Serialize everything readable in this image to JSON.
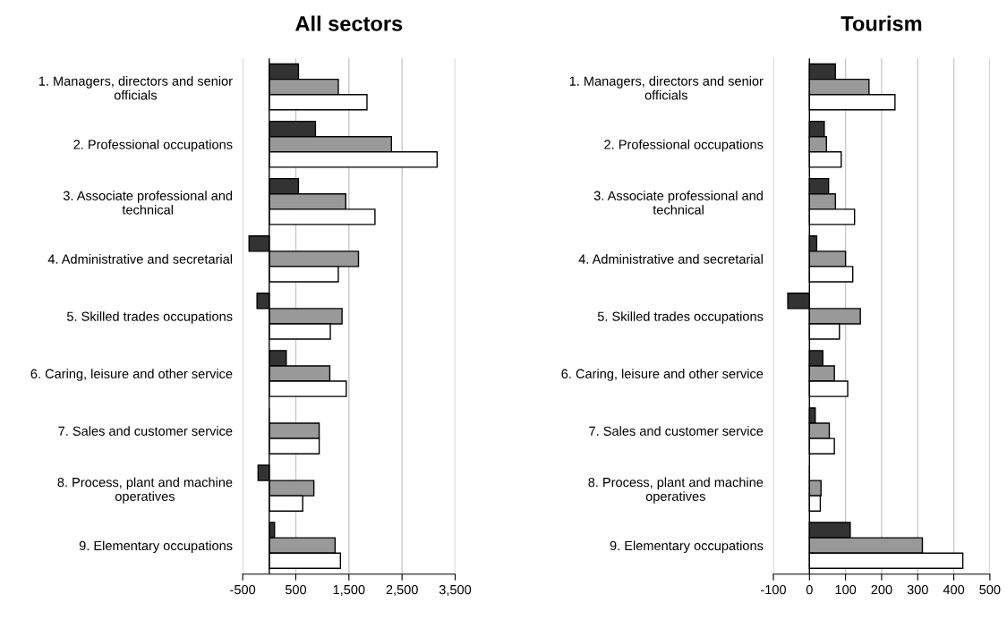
{
  "chart_data": [
    {
      "type": "bar",
      "orientation": "horizontal",
      "title": "All sectors",
      "categories": [
        "1. Managers, directors and senior\nofficials",
        "2. Professional occupations",
        "3. Associate professional and\ntechnical",
        "4. Administrative and secretarial",
        "5. Skilled trades occupations",
        "6. Caring, leisure and other service",
        "7. Sales and customer service",
        "8. Process, plant and machine\noperatives",
        "9. Elementary occupations"
      ],
      "series": [
        {
          "color": "#333333",
          "values": [
            550,
            870,
            550,
            -380,
            -230,
            320,
            0,
            -210,
            100
          ]
        },
        {
          "color": "#999999",
          "values": [
            1300,
            2300,
            1440,
            1680,
            1370,
            1140,
            940,
            840,
            1240
          ]
        },
        {
          "color": "#ffffff",
          "values": [
            1840,
            3160,
            1990,
            1300,
            1150,
            1450,
            940,
            630,
            1340
          ]
        }
      ],
      "xlim": [
        -500,
        3500
      ],
      "xticks": [
        {
          "value": -500,
          "label": "-500"
        },
        {
          "value": 500,
          "label": "500"
        },
        {
          "value": 1500,
          "label": "1,500"
        },
        {
          "value": 2500,
          "label": "2,500"
        },
        {
          "value": 3500,
          "label": "3,500"
        }
      ],
      "grid": "x"
    },
    {
      "type": "bar",
      "orientation": "horizontal",
      "title": "Tourism",
      "categories": [
        "1. Managers, directors and senior\nofficials",
        "2. Professional occupations",
        "3. Associate professional and\ntechnical",
        "4. Administrative and secretarial",
        "5. Skilled trades occupations",
        "6. Caring, leisure and other service",
        "7. Sales and customer service",
        "8. Process, plant and machine\noperatives",
        "9. Elementary occupations"
      ],
      "series": [
        {
          "color": "#333333",
          "values": [
            72,
            41,
            53,
            20,
            -60,
            37,
            16,
            0,
            113
          ]
        },
        {
          "color": "#999999",
          "values": [
            165,
            47,
            72,
            100,
            141,
            69,
            55,
            32,
            313
          ]
        },
        {
          "color": "#ffffff",
          "values": [
            237,
            88,
            125,
            120,
            83,
            106,
            69,
            30,
            425
          ]
        }
      ],
      "xlim": [
        -100,
        500
      ],
      "xticks": [
        -100,
        0,
        100,
        200,
        300,
        400,
        500
      ],
      "grid": "x"
    }
  ]
}
